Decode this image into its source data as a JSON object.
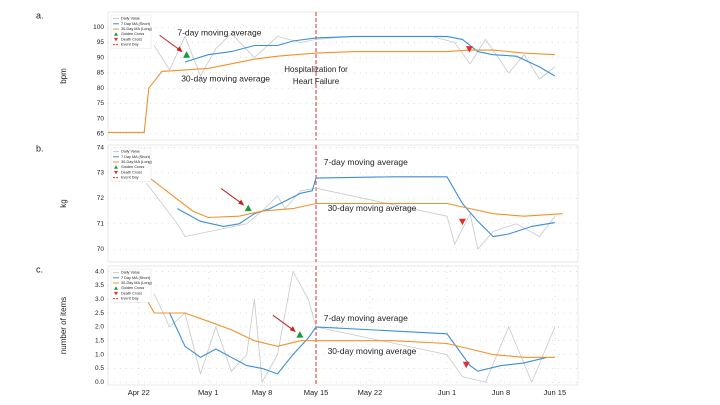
{
  "chart_data": [
    {
      "type": "line",
      "label": "a.",
      "ylabel": "bpm",
      "xlim": [
        108,
        169
      ],
      "ylim": [
        63,
        105
      ],
      "yticks": [
        65,
        70,
        75,
        80,
        85,
        90,
        95,
        100
      ],
      "series": [
        {
          "name": "Daily Value",
          "color": "#c8c8c8",
          "x": [
            114,
            116,
            118,
            120,
            122,
            124,
            127,
            130,
            133,
            135,
            140,
            150,
            153,
            155,
            157,
            160,
            162,
            164,
            166
          ],
          "values": [
            94,
            86,
            97,
            84,
            93,
            98,
            90,
            97,
            95,
            96,
            97,
            97,
            95,
            88,
            96,
            85,
            91,
            83,
            87
          ]
        },
        {
          "name": "7 Day MA (Short)",
          "color": "#3b8fd9",
          "x": [
            118,
            121,
            124,
            127,
            130,
            132,
            135,
            140,
            145,
            152,
            154,
            156,
            158,
            161,
            164,
            166
          ],
          "values": [
            88.6,
            91,
            92,
            94,
            94,
            95.5,
            96.5,
            97,
            97,
            97,
            96,
            92,
            91,
            90.5,
            87,
            84
          ]
        },
        {
          "name": "30-Day MA (Long)",
          "color": "#f0922b",
          "x": [
            108,
            112.7,
            113.3,
            115,
            118,
            121,
            124,
            127,
            130,
            135,
            140,
            145,
            152,
            155,
            158,
            162,
            166
          ],
          "values": [
            65.5,
            65.5,
            80,
            85.5,
            86,
            86.5,
            88,
            89.5,
            90.5,
            91.5,
            92,
            92,
            92,
            92.5,
            92.5,
            91.5,
            91
          ]
        },
        {
          "name": "Golden Cross",
          "color": "#1a9a3a",
          "marker": "triangle-up",
          "x": [
            118.2
          ],
          "values": [
            90.8
          ]
        },
        {
          "name": "Death Cross",
          "color": "#e0322b",
          "marker": "triangle-down",
          "x": [
            154.9
          ],
          "values": [
            93
          ]
        }
      ],
      "event": {
        "name": "Event Day",
        "x": 135,
        "color": "#e0322b",
        "label": [
          "Hospitalization for",
          "Heart Failure"
        ],
        "label_y": [
          86,
          82
        ]
      },
      "annotations": [
        {
          "text": "7-day moving average",
          "x": 117,
          "y": 98,
          "color": "#1f6fc4"
        },
        {
          "text": "30-day moving average",
          "x": 117.5,
          "y": 83,
          "color": "#e07b1a"
        }
      ]
    },
    {
      "type": "line",
      "label": "b.",
      "ylabel": "kg",
      "xlim": [
        108,
        169
      ],
      "ylim": [
        69.5,
        74.1
      ],
      "yticks": [
        70,
        71,
        72,
        73,
        74
      ],
      "series": [
        {
          "name": "Daily Value",
          "color": "#c8c8c8",
          "x": [
            113,
            115,
            117,
            118,
            126,
            128,
            130,
            131,
            133,
            135,
            152,
            153,
            155,
            156,
            158,
            161,
            164,
            166
          ],
          "values": [
            72.6,
            71.8,
            71.0,
            70.5,
            71.0,
            71.5,
            72.1,
            71.6,
            72.3,
            72.4,
            71.3,
            70.2,
            71.4,
            70.0,
            70.7,
            71.0,
            70.5,
            71.3
          ]
        },
        {
          "name": "7 Day MA (Short)",
          "color": "#3b8fd9",
          "x": [
            117,
            120,
            123,
            125,
            127,
            129,
            131,
            133,
            134.5,
            135,
            145,
            152,
            154,
            156,
            157,
            158,
            160,
            163,
            166
          ],
          "values": [
            71.6,
            71.1,
            70.9,
            71.0,
            71.4,
            71.6,
            71.9,
            72.2,
            72.3,
            72.8,
            72.85,
            72.85,
            71.8,
            71.1,
            70.8,
            70.5,
            70.6,
            70.9,
            71.05
          ]
        },
        {
          "name": "30-Day MA (Long)",
          "color": "#f0922b",
          "x": [
            113,
            116,
            119,
            121,
            125,
            128,
            132,
            135,
            145,
            152,
            155,
            158,
            162,
            167
          ],
          "values": [
            72.9,
            72.2,
            71.5,
            71.25,
            71.3,
            71.5,
            71.6,
            71.8,
            71.8,
            71.8,
            71.6,
            71.4,
            71.3,
            71.4
          ]
        },
        {
          "name": "Golden Cross",
          "color": "#1a9a3a",
          "marker": "triangle-up",
          "x": [
            126.2
          ],
          "values": [
            71.6
          ]
        },
        {
          "name": "Death Cross",
          "color": "#e0322b",
          "marker": "triangle-down",
          "x": [
            154
          ],
          "values": [
            71.1
          ]
        }
      ],
      "event": {
        "name": "Event Day",
        "x": 135,
        "color": "#e0322b"
      },
      "annotations": [
        {
          "text": "7-day moving average",
          "x": 136,
          "y": 73.4,
          "color": "#1f6fc4"
        },
        {
          "text": "30-day moving average",
          "x": 136.5,
          "y": 71.6,
          "color": "#e07b1a"
        }
      ]
    },
    {
      "type": "line",
      "label": "c.",
      "ylabel": "number of items",
      "xlim": [
        108,
        169
      ],
      "ylim": [
        -0.1,
        4.2
      ],
      "yticks": [
        {
          "value": 0,
          "label": "0.0"
        },
        0.5,
        {
          "value": 1,
          "label": "1.0"
        },
        1.5,
        {
          "value": 2,
          "label": "2.0"
        },
        2.5,
        {
          "value": 3,
          "label": "3.0"
        },
        3.5,
        {
          "value": 4,
          "label": "4.0"
        }
      ],
      "xticks": [
        {
          "value": 112,
          "label": "Apr 22"
        },
        {
          "value": 121,
          "label": "May 1"
        },
        {
          "value": 128,
          "label": "May 8"
        },
        {
          "value": 135,
          "label": "May 15"
        },
        {
          "value": 142,
          "label": "May 22"
        },
        {
          "value": 152,
          "label": "Jun 1"
        },
        {
          "value": 159,
          "label": "Jun 8"
        },
        {
          "value": 166,
          "label": "Jun 15"
        }
      ],
      "series": [
        {
          "name": "Daily Value",
          "color": "#c8c8c8",
          "x": [
            114,
            116,
            118,
            120,
            122,
            124,
            126,
            127,
            128,
            130,
            132,
            134,
            135,
            152,
            154,
            157,
            160,
            163,
            166
          ],
          "values": [
            3.2,
            2.0,
            2.5,
            0.3,
            2.0,
            0.4,
            1.0,
            3.0,
            0.0,
            1.0,
            4.0,
            3.0,
            2.0,
            1.0,
            0.2,
            0.0,
            2.0,
            0.0,
            2.0
          ]
        },
        {
          "name": "7 Day MA (Short)",
          "color": "#3b8fd9",
          "x": [
            116,
            118,
            120,
            122,
            124,
            126,
            128,
            130,
            132,
            134,
            135,
            152,
            155,
            156,
            159,
            162,
            165
          ],
          "values": [
            2.5,
            1.3,
            0.9,
            1.2,
            0.9,
            0.6,
            0.5,
            0.3,
            1.0,
            1.6,
            2.0,
            1.75,
            0.6,
            0.4,
            0.6,
            0.7,
            0.9
          ]
        },
        {
          "name": "30-Day MA (Long)",
          "color": "#f0922b",
          "x": [
            113,
            114,
            118,
            121,
            124,
            127,
            130,
            133,
            135,
            145,
            152,
            155,
            158,
            162,
            166
          ],
          "values": [
            3.0,
            2.5,
            2.5,
            2.2,
            1.9,
            1.5,
            1.3,
            1.5,
            1.5,
            1.5,
            1.4,
            1.2,
            1.0,
            0.9,
            0.9
          ]
        },
        {
          "name": "Golden Cross",
          "color": "#1a9a3a",
          "marker": "triangle-up",
          "x": [
            132.9
          ],
          "values": [
            1.7
          ]
        },
        {
          "name": "Death Cross",
          "color": "#e0322b",
          "marker": "triangle-down",
          "x": [
            154.5
          ],
          "values": [
            0.65
          ]
        }
      ],
      "event": {
        "name": "Event Day",
        "x": 135,
        "color": "#e0322b"
      },
      "annotations": [
        {
          "text": "7-day moving average",
          "x": 136,
          "y": 2.3,
          "color": "#1f6fc4"
        },
        {
          "text": "30-day moving average",
          "x": 136.5,
          "y": 1.1,
          "color": "#e07b1a"
        }
      ]
    }
  ]
}
